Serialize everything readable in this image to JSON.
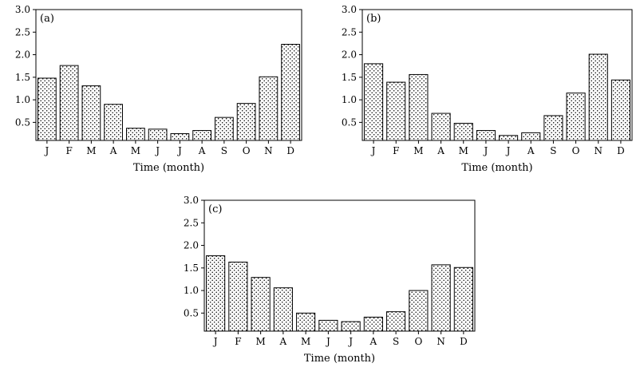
{
  "chart_data": [
    {
      "type": "bar",
      "panel_label": "(a)",
      "categories": [
        "J",
        "F",
        "M",
        "A",
        "M",
        "J",
        "J",
        "A",
        "S",
        "O",
        "N",
        "D"
      ],
      "values": [
        1.48,
        1.76,
        1.31,
        0.9,
        0.37,
        0.35,
        0.25,
        0.32,
        0.61,
        0.92,
        1.51,
        2.23
      ],
      "xlabel": "Time (month)",
      "ylabel": "",
      "ylim": [
        0.1,
        3.0
      ],
      "yticks": [
        "0.5",
        "1.0",
        "1.5",
        "2.0",
        "2.5",
        "3.0"
      ],
      "grid": false,
      "bar_pattern": "dotted"
    },
    {
      "type": "bar",
      "panel_label": "(b)",
      "categories": [
        "J",
        "F",
        "M",
        "A",
        "M",
        "J",
        "J",
        "A",
        "S",
        "O",
        "N",
        "D"
      ],
      "values": [
        1.8,
        1.39,
        1.56,
        0.7,
        0.48,
        0.32,
        0.21,
        0.27,
        0.65,
        1.15,
        2.01,
        1.44
      ],
      "xlabel": "Time (month)",
      "ylabel": "",
      "ylim": [
        0.1,
        3.0
      ],
      "yticks": [
        "0.5",
        "1.0",
        "1.5",
        "2.0",
        "2.5",
        "3.0"
      ],
      "grid": false,
      "bar_pattern": "dotted"
    },
    {
      "type": "bar",
      "panel_label": "(c)",
      "categories": [
        "J",
        "F",
        "M",
        "A",
        "M",
        "J",
        "J",
        "A",
        "S",
        "O",
        "N",
        "D"
      ],
      "values": [
        1.77,
        1.63,
        1.29,
        1.06,
        0.5,
        0.34,
        0.31,
        0.41,
        0.53,
        1.0,
        1.57,
        1.51
      ],
      "xlabel": "Time (month)",
      "ylabel": "",
      "ylim": [
        0.1,
        3.0
      ],
      "yticks": [
        "0.5",
        "1.0",
        "1.5",
        "2.0",
        "2.5",
        "3.0"
      ],
      "grid": false,
      "bar_pattern": "dotted"
    }
  ]
}
